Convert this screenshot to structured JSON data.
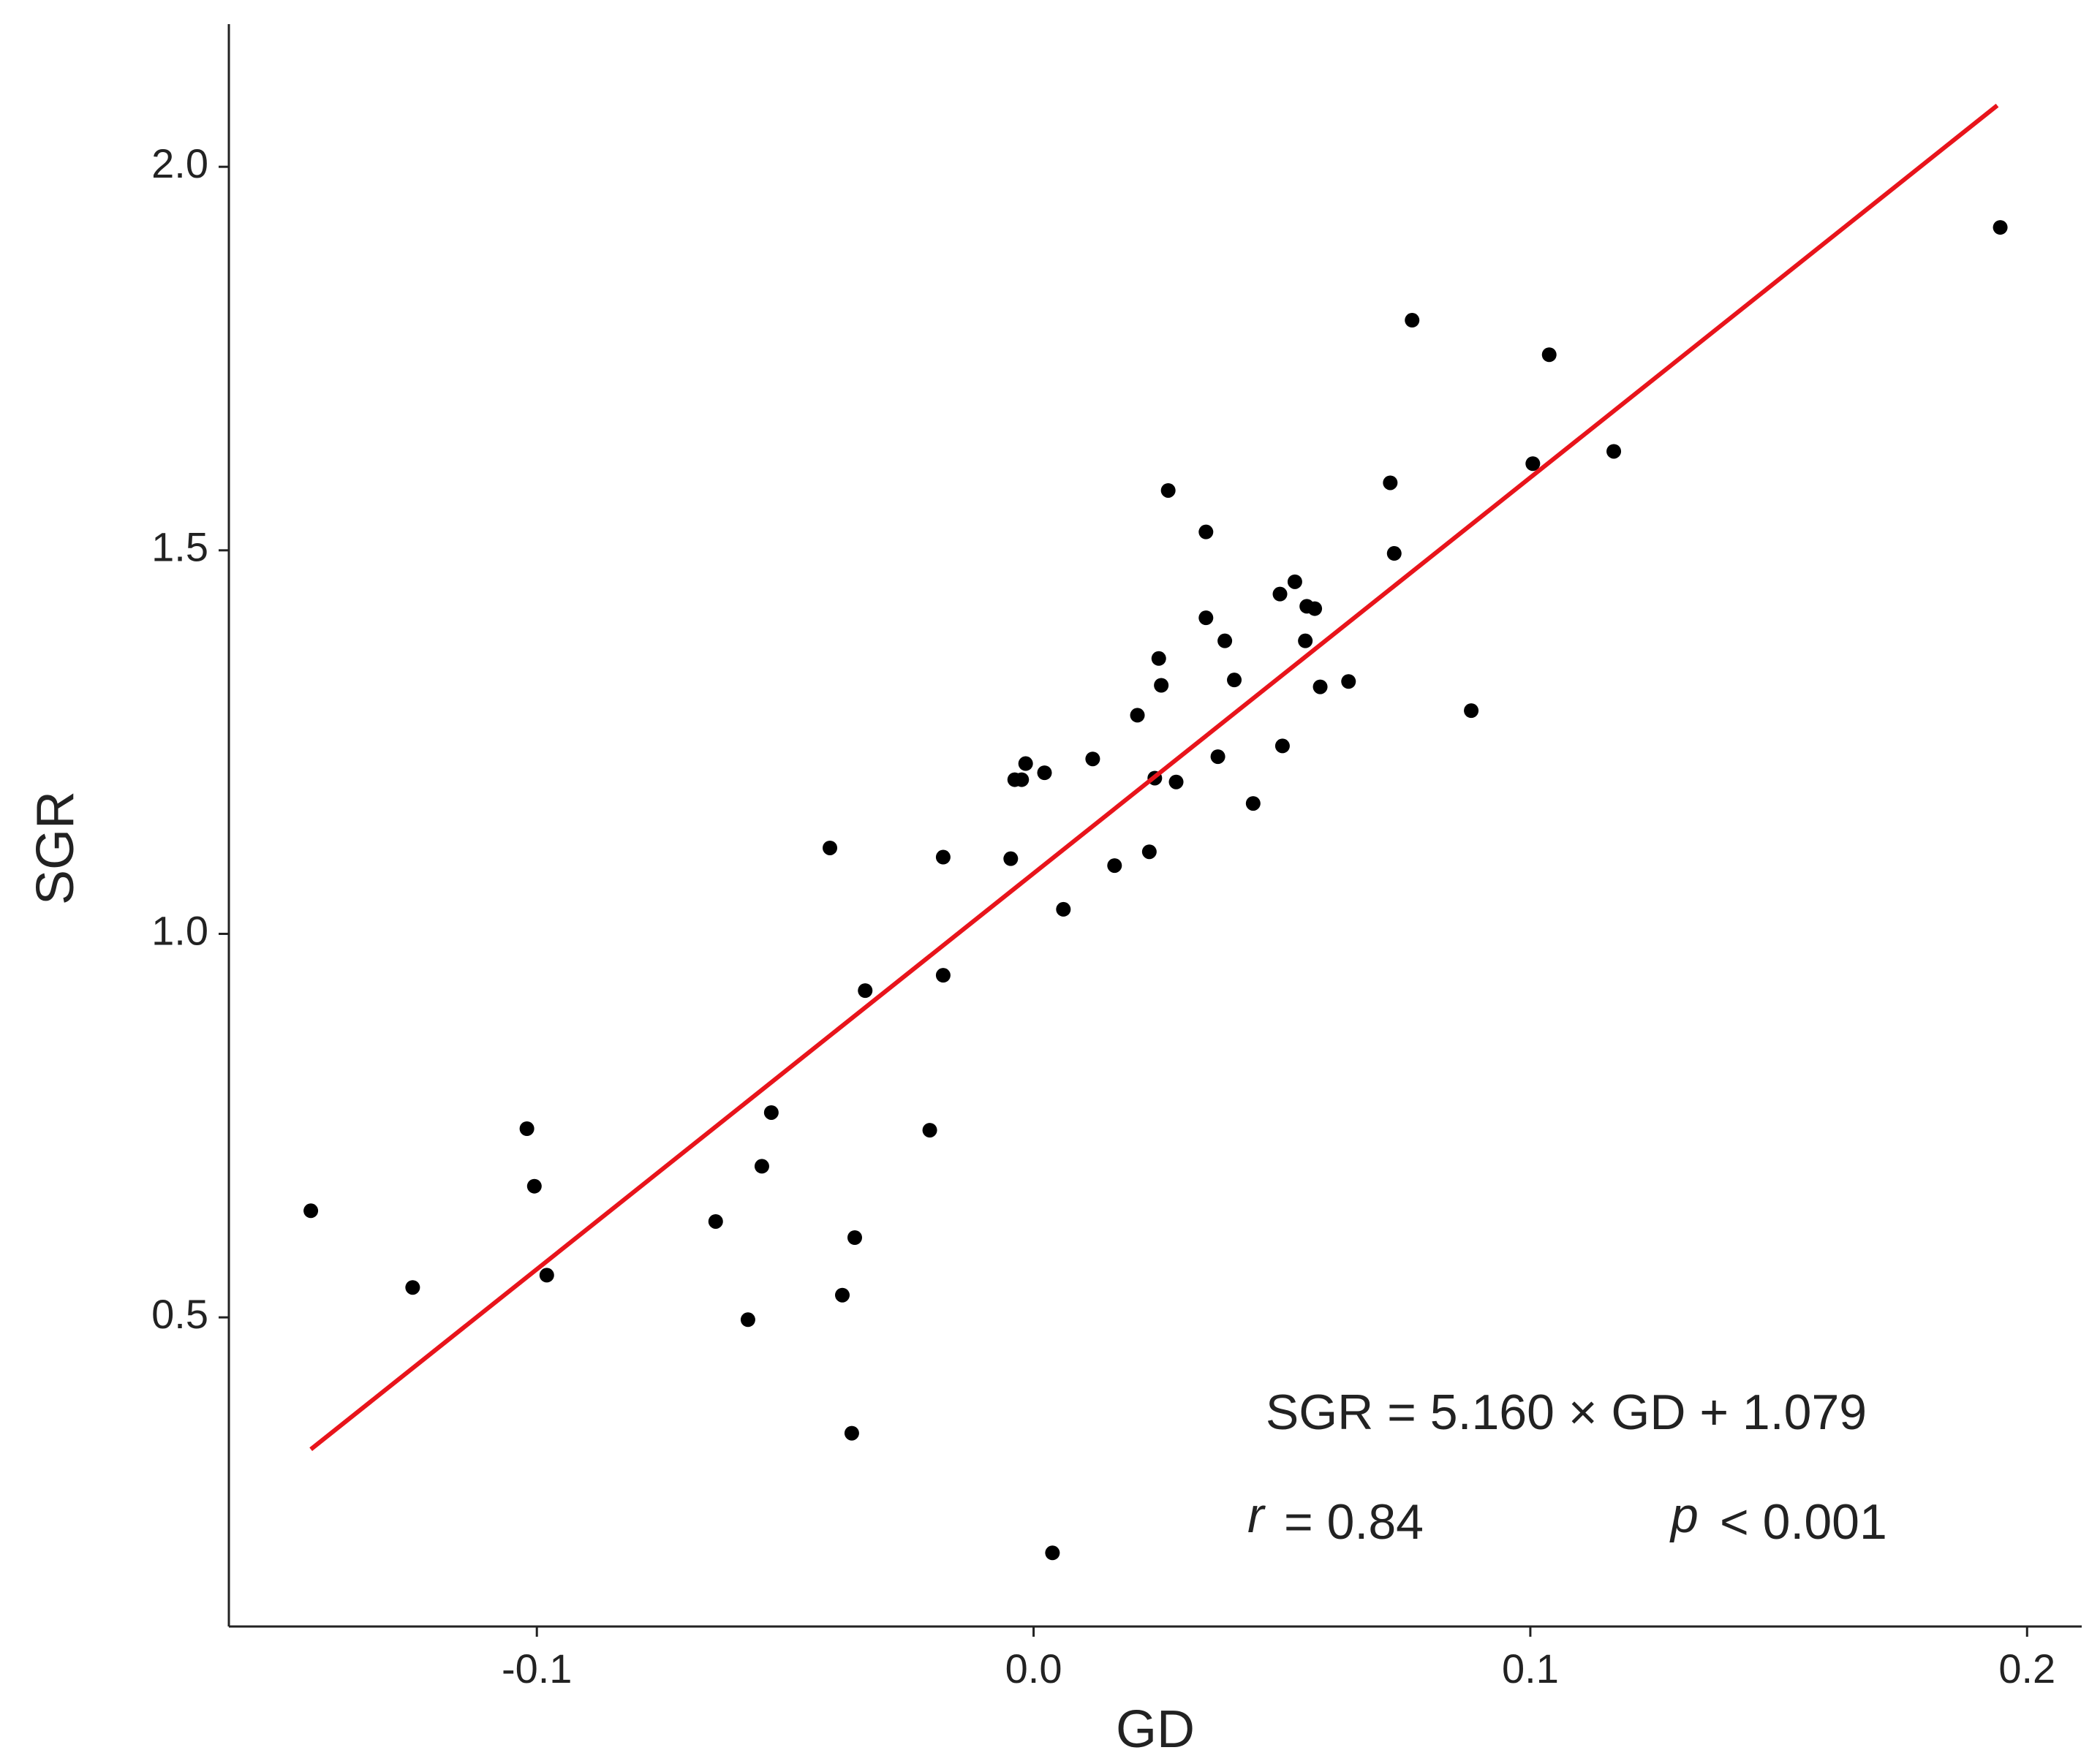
{
  "chart_data": {
    "type": "scatter",
    "x_label": "GD",
    "y_label": "SGR",
    "xlim": [
      -0.162,
      0.211
    ],
    "ylim": [
      0.097,
      2.186
    ],
    "xticks": [
      -0.1,
      {
        "value": 0.0,
        "label": "0.0"
      },
      0.1,
      0.2
    ],
    "yticks": [
      0.5,
      {
        "value": 1.0,
        "label": "1.0"
      },
      1.5,
      {
        "value": 2.0,
        "label": "2.0"
      }
    ],
    "series": [
      {
        "name": "Samples",
        "color": "#000000",
        "x": [
          -0.1455,
          -0.125,
          -0.102,
          -0.1005,
          -0.098,
          -0.064,
          -0.0575,
          -0.0547,
          -0.0528,
          -0.041,
          -0.0385,
          -0.036,
          -0.0366,
          -0.0339,
          -0.0209,
          -0.0182,
          -0.0182,
          -0.0046,
          -0.0038,
          -0.0024,
          -0.0016,
          0.0022,
          0.0038,
          0.006,
          0.0119,
          0.0163,
          0.0209,
          0.0233,
          0.0244,
          0.0252,
          0.0257,
          0.0271,
          0.0287,
          0.0347,
          0.0347,
          0.0371,
          0.0385,
          0.0404,
          0.0442,
          0.0496,
          0.0501,
          0.0526,
          0.0547,
          0.055,
          0.0566,
          0.0577,
          0.0634,
          0.0718,
          0.0726,
          0.0762,
          0.0881,
          0.1005,
          0.1038,
          0.1168,
          0.1946
        ],
        "values": [
          0.639,
          0.539,
          0.746,
          0.671,
          0.555,
          0.625,
          0.497,
          0.697,
          0.767,
          1.112,
          0.529,
          0.604,
          0.349,
          0.926,
          0.744,
          1.1,
          0.946,
          1.098,
          1.201,
          1.201,
          1.222,
          1.21,
          0.193,
          1.032,
          1.228,
          1.089,
          1.285,
          1.107,
          1.203,
          1.359,
          1.324,
          1.578,
          1.198,
          1.524,
          1.412,
          1.231,
          1.382,
          1.331,
          1.17,
          1.443,
          1.245,
          1.459,
          1.382,
          1.427,
          1.424,
          1.322,
          1.329,
          1.588,
          1.496,
          1.8,
          1.291,
          1.613,
          1.755,
          1.629,
          1.921
        ]
      },
      {
        "name": "Fit",
        "color": "#e8141b",
        "line": true,
        "x": [
          -0.1455,
          0.194
        ],
        "values": [
          0.328,
          2.08
        ]
      }
    ],
    "annotations": {
      "equation": "SGR = 5.160 × GD + 1.079",
      "r_symbol": "r",
      "r_value": "= 0.84",
      "p_symbol": "p",
      "p_value": "< 0.001"
    }
  }
}
